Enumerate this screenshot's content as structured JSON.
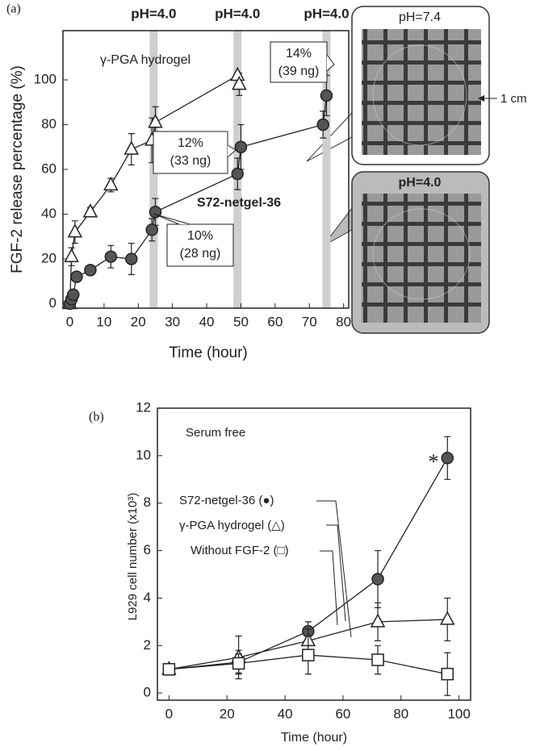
{
  "chart_data": [
    {
      "type": "line",
      "panel_label": "(a)",
      "x_label": "Time (hour)",
      "y_label": "FGF-2 release percentage (%)",
      "xlim": [
        -2,
        81.5
      ],
      "ylim": [
        -2,
        122
      ],
      "xticks": [
        0,
        10,
        20,
        30,
        40,
        50,
        60,
        70,
        80
      ],
      "yticks": [
        0,
        20,
        40,
        60,
        80,
        100
      ],
      "bands": [
        {
          "x": 24.5,
          "label": "pH=4.0"
        },
        {
          "x": 49,
          "label": "pH=4.0"
        },
        {
          "x": 75,
          "label": "pH=4.0"
        }
      ],
      "series": [
        {
          "name": "γ-PGA hydrogel",
          "marker": "triangle",
          "color": "#ffffff",
          "x": [
            0,
            0.5,
            1.5,
            6,
            12,
            18,
            24,
            25,
            49,
            49.5
          ],
          "values": [
            0,
            21,
            32,
            41,
            53,
            69,
            73,
            81,
            102,
            98
          ],
          "errors": [
            0,
            4,
            5,
            2,
            3,
            7,
            10,
            7,
            0,
            5
          ]
        },
        {
          "name": "S72-netgel-36",
          "marker": "circle",
          "color": "#555555",
          "x": [
            0,
            0.5,
            1,
            2,
            6,
            12,
            18,
            24,
            25,
            49,
            50,
            74,
            75
          ],
          "values": [
            0,
            2,
            4,
            12,
            15,
            21,
            20,
            33,
            41,
            58,
            70,
            80,
            93
          ],
          "errors": [
            0,
            1,
            2,
            2,
            2,
            5,
            7,
            5,
            6,
            7,
            10,
            6,
            9
          ]
        }
      ],
      "annotations": [
        {
          "lines": [
            "12%",
            "(33 ng)"
          ]
        },
        {
          "lines": [
            "10%",
            "(28 ng)"
          ]
        },
        {
          "lines": [
            "14%",
            "(39 ng)"
          ]
        }
      ],
      "photos": [
        {
          "label": "pH=7.4"
        },
        {
          "label": "pH=4.0"
        }
      ],
      "scale_label": "1 cm"
    },
    {
      "type": "line",
      "panel_label": "(b)",
      "x_label": "Time (hour)",
      "y_label": "L929 cell number (x10³)",
      "xlim": [
        -4,
        104
      ],
      "ylim": [
        -0.3,
        12
      ],
      "xticks": [
        0,
        20,
        40,
        60,
        80,
        100
      ],
      "yticks": [
        0,
        2,
        4,
        6,
        8,
        10,
        12
      ],
      "series": [
        {
          "name": "S72-netgel-36 (●)",
          "marker": "circle",
          "color": "#555555",
          "x": [
            0,
            24,
            48,
            72,
            96
          ],
          "values": [
            1,
            1.3,
            2.6,
            4.8,
            9.9
          ],
          "errors": [
            0.2,
            0.5,
            0.4,
            1.2,
            0.9
          ]
        },
        {
          "name": "γ-PGA hydrogel (△)",
          "marker": "triangle",
          "color": "#ffffff",
          "x": [
            0,
            24,
            48,
            72,
            96
          ],
          "values": [
            1,
            1.5,
            2.2,
            3.0,
            3.1
          ],
          "errors": [
            0.1,
            0.9,
            0.5,
            0.8,
            0.9
          ]
        },
        {
          "name": "Without FGF-2 (□)",
          "marker": "square",
          "color": "#ffffff",
          "x": [
            0,
            24,
            48,
            72,
            96
          ],
          "values": [
            1,
            1.25,
            1.6,
            1.4,
            0.8
          ],
          "errors": [
            0.1,
            0.4,
            0.8,
            0.6,
            0.9
          ]
        }
      ],
      "annotations": [
        {
          "text": "Serum free"
        },
        {
          "text": "*"
        }
      ]
    }
  ]
}
